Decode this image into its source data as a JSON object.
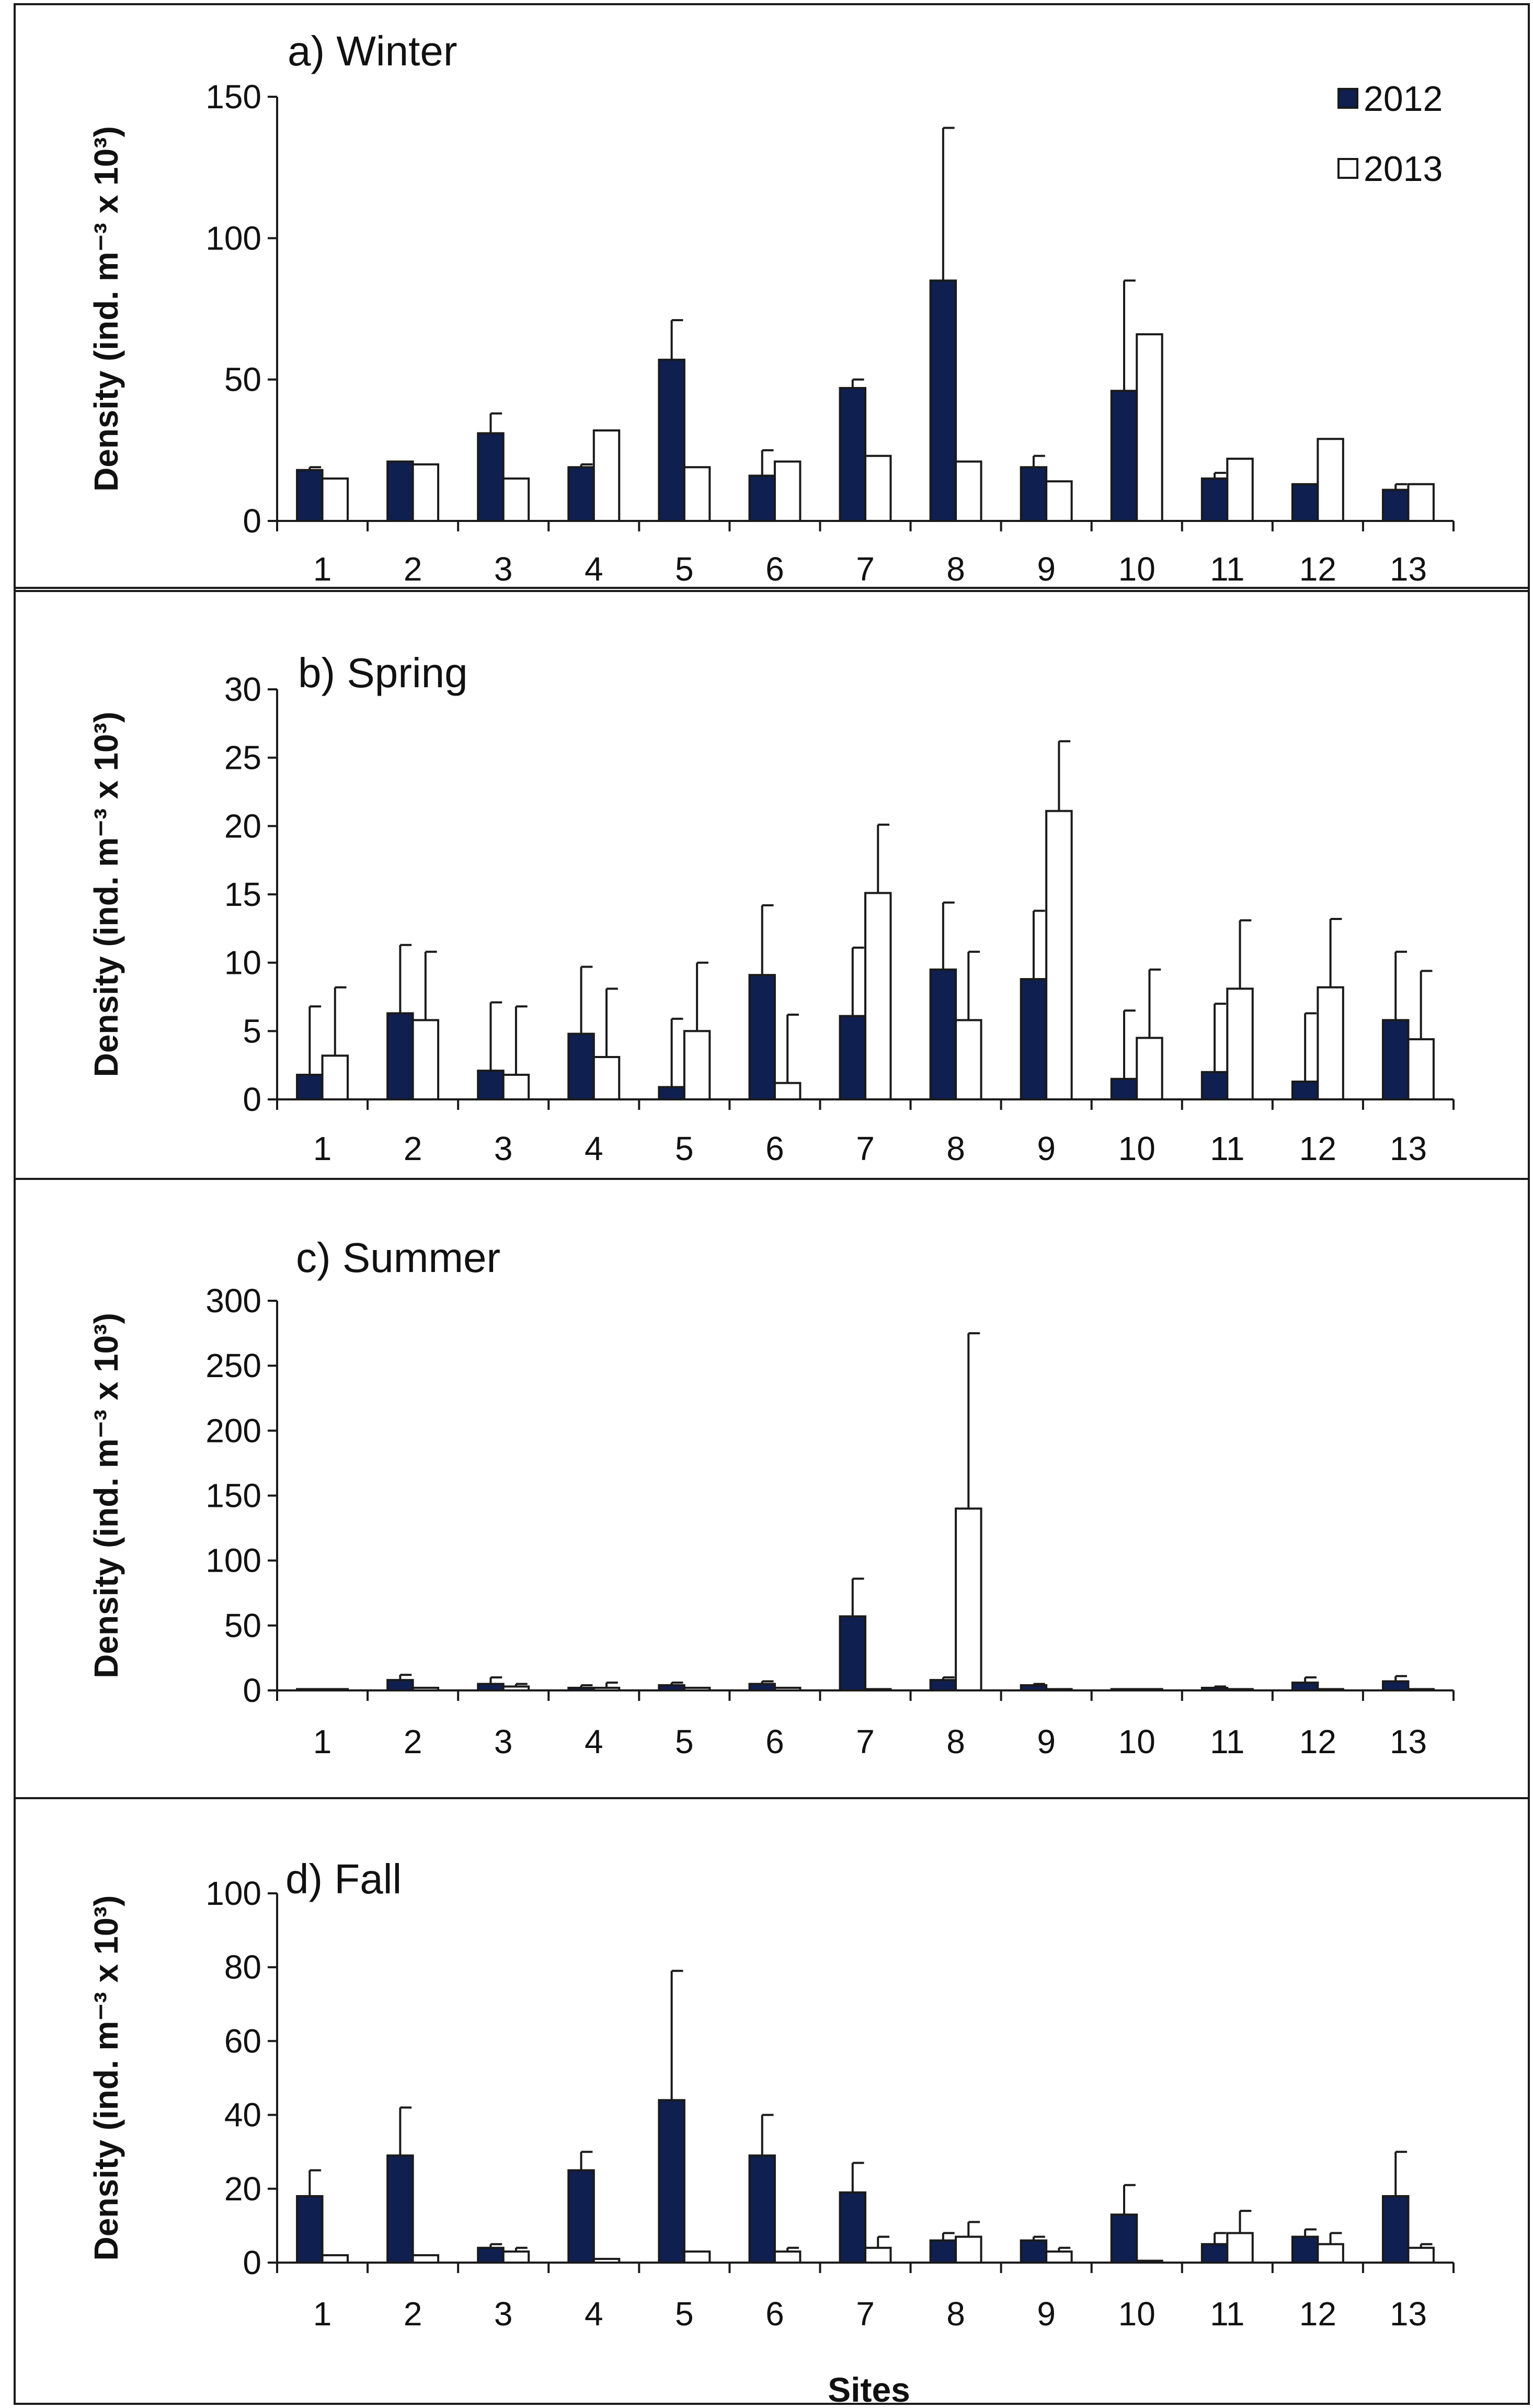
{
  "colors": {
    "series_2012": "#0f1f4f",
    "series_2013": "#ffffff",
    "outline": "#1a1a1a"
  },
  "legend": {
    "placement": "top-right",
    "items": [
      "2012",
      "2013"
    ]
  },
  "xlabel": "Sites",
  "chart_data": [
    {
      "type": "bar",
      "title": "a) Winter",
      "ylabel": "Density (ind. m⁻³ x 10³)",
      "ylim": [
        0,
        150
      ],
      "yticks": [
        "0",
        "50",
        "100",
        "150"
      ],
      "categories": [
        "1",
        "2",
        "3",
        "4",
        "5",
        "6",
        "7",
        "8",
        "9",
        "10",
        "11",
        "12",
        "13"
      ],
      "series": [
        {
          "name": "2012",
          "values": [
            18,
            21,
            31,
            19,
            57,
            16,
            47,
            85,
            19,
            46,
            15,
            13,
            11
          ],
          "errors": [
            1,
            0,
            7,
            1,
            14,
            9,
            3,
            54,
            4,
            39,
            2,
            0,
            2
          ]
        },
        {
          "name": "2013",
          "values": [
            15,
            20,
            15,
            32,
            19,
            21,
            23,
            21,
            14,
            66,
            22,
            29,
            13
          ],
          "errors": [
            0,
            0,
            0,
            0,
            0,
            0,
            0,
            0,
            0,
            0,
            0,
            0,
            0
          ]
        }
      ]
    },
    {
      "type": "bar",
      "title": "b) Spring",
      "ylabel": "Density (ind. m⁻³ x 10³)",
      "ylim": [
        0,
        30
      ],
      "yticks": [
        "0",
        "5",
        "10",
        "15",
        "20",
        "25",
        "30"
      ],
      "categories": [
        "1",
        "2",
        "3",
        "4",
        "5",
        "6",
        "7",
        "8",
        "9",
        "10",
        "11",
        "12",
        "13"
      ],
      "series": [
        {
          "name": "2012",
          "values": [
            1.8,
            6.3,
            2.1,
            4.8,
            0.9,
            9.1,
            6.1,
            9.5,
            8.8,
            1.5,
            2.0,
            1.3,
            5.8
          ],
          "errors": [
            5.0,
            5.0,
            5.0,
            4.9,
            5.0,
            5.1,
            5.0,
            4.9,
            5.0,
            5.0,
            5.0,
            5.0,
            5.0
          ]
        },
        {
          "name": "2013",
          "values": [
            3.2,
            5.8,
            1.8,
            3.1,
            5.0,
            1.2,
            15.1,
            5.8,
            21.1,
            4.5,
            8.1,
            8.2,
            4.4
          ],
          "errors": [
            5.0,
            5.0,
            5.0,
            5.0,
            5.0,
            5.0,
            5.0,
            5.0,
            5.1,
            5.0,
            5.0,
            5.0,
            5.0
          ]
        }
      ]
    },
    {
      "type": "bar",
      "title": "c) Summer",
      "ylabel": "Density (ind. m⁻³ x 10³)",
      "ylim": [
        0,
        300
      ],
      "yticks": [
        "0",
        "50",
        "100",
        "150",
        "200",
        "250",
        "300"
      ],
      "categories": [
        "1",
        "2",
        "3",
        "4",
        "5",
        "6",
        "7",
        "8",
        "9",
        "10",
        "11",
        "12",
        "13"
      ],
      "series": [
        {
          "name": "2012",
          "values": [
            1,
            8,
            5,
            2,
            4,
            5,
            57,
            8,
            4,
            1,
            2,
            6,
            7
          ],
          "errors": [
            0,
            4,
            5,
            2,
            2,
            2,
            29,
            2,
            1,
            0,
            1,
            4,
            4
          ]
        },
        {
          "name": "2013",
          "values": [
            1,
            2,
            3,
            2,
            2,
            2,
            1,
            140,
            1,
            1,
            1,
            1,
            1
          ],
          "errors": [
            0,
            0,
            2,
            4,
            0,
            0,
            0,
            135,
            0,
            0,
            0,
            0,
            0
          ]
        }
      ]
    },
    {
      "type": "bar",
      "title": "d) Fall",
      "ylabel": "Density (ind. m⁻³ x 10³)",
      "ylim": [
        0,
        100
      ],
      "yticks": [
        "0",
        "20",
        "40",
        "60",
        "80",
        "100"
      ],
      "categories": [
        "1",
        "2",
        "3",
        "4",
        "5",
        "6",
        "7",
        "8",
        "9",
        "10",
        "11",
        "12",
        "13"
      ],
      "series": [
        {
          "name": "2012",
          "values": [
            18,
            29,
            4,
            25,
            44,
            29,
            19,
            6,
            6,
            13,
            5,
            7,
            18
          ],
          "errors": [
            7,
            13,
            1,
            5,
            35,
            11,
            8,
            2,
            1,
            8,
            3,
            2,
            12
          ]
        },
        {
          "name": "2013",
          "values": [
            2,
            2,
            3,
            1,
            3,
            3,
            4,
            7,
            3,
            0.5,
            8,
            5,
            4
          ],
          "errors": [
            0,
            0,
            1,
            0,
            0,
            1,
            3,
            4,
            1,
            0,
            6,
            3,
            1
          ]
        }
      ]
    }
  ]
}
